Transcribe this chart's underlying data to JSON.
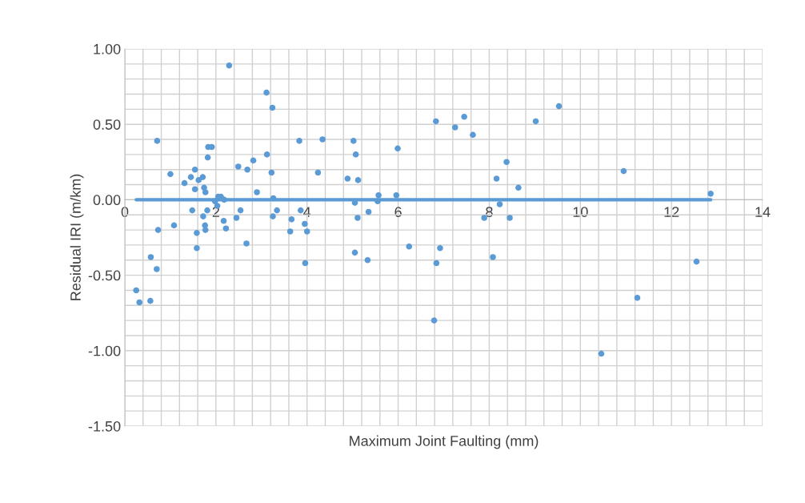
{
  "chart_data": {
    "type": "scatter",
    "xlabel": "Maximum Joint Faulting (mm)",
    "ylabel": "Residual IRI (m/km)",
    "xlim": [
      0,
      14
    ],
    "ylim": [
      -1.5,
      1.0
    ],
    "xticks": [
      0,
      2,
      4,
      6,
      8,
      10,
      12,
      14
    ],
    "yticks": [
      {
        "value": -1.5,
        "label": "-1.50"
      },
      {
        "value": -1.0,
        "label": "-1.00"
      },
      {
        "value": -0.5,
        "label": "-0.50"
      },
      {
        "value": 0,
        "label": "0.00"
      },
      {
        "value": 0.5,
        "label": "0.50"
      },
      {
        "value": 1.0,
        "label": "1.00"
      }
    ],
    "grid": true,
    "legend": false,
    "marker": "circle",
    "series": [
      {
        "color": "#5b9bd5",
        "x": [
          2.29,
          3.11,
          3.24,
          0.71,
          3.83,
          4.34,
          1.83,
          1.91,
          1.82,
          3.12,
          2.82,
          2.49,
          2.69,
          1.0,
          1.54,
          1.45,
          1.71,
          1.62,
          3.22,
          4.24,
          1.31,
          1.54,
          1.74,
          1.77,
          2.9,
          3.26,
          2.05,
          2.11,
          2.18,
          1.98,
          2.03,
          1.48,
          1.81,
          2.54,
          3.34,
          3.86,
          1.72,
          2.45,
          3.25,
          3.66,
          2.17,
          1.76,
          3.95,
          0.73,
          1.08,
          1.77,
          2.22,
          3.63,
          4.0,
          1.58,
          1.58,
          2.67,
          3.96,
          0.57,
          0.7,
          0.25,
          0.32,
          0.56,
          9.53,
          6.83,
          9.02,
          7.45,
          7.25,
          7.64,
          5.02,
          5.07,
          5.99,
          8.38,
          4.89,
          5.12,
          8.16,
          8.64,
          5.57,
          5.96,
          5.55,
          5.05,
          8.23,
          5.35,
          5.11,
          7.89,
          8.45,
          6.24,
          6.92,
          5.05,
          5.33,
          8.08,
          6.84,
          6.79,
          10.95,
          12.86,
          12.55,
          11.25,
          10.46
        ],
        "values": [
          0.89,
          0.71,
          0.61,
          0.39,
          0.39,
          0.4,
          0.35,
          0.35,
          0.28,
          0.3,
          0.26,
          0.22,
          0.2,
          0.17,
          0.2,
          0.15,
          0.15,
          0.13,
          0.18,
          0.18,
          0.11,
          0.07,
          0.08,
          0.05,
          0.05,
          0.01,
          0.02,
          0.02,
          0.0,
          -0.01,
          -0.04,
          -0.07,
          -0.07,
          -0.07,
          -0.07,
          -0.07,
          -0.11,
          -0.12,
          -0.11,
          -0.13,
          -0.14,
          -0.17,
          -0.16,
          -0.2,
          -0.17,
          -0.2,
          -0.19,
          -0.21,
          -0.21,
          -0.22,
          -0.32,
          -0.29,
          -0.42,
          -0.38,
          -0.46,
          -0.6,
          -0.68,
          -0.67,
          0.62,
          0.52,
          0.52,
          0.55,
          0.48,
          0.43,
          0.39,
          0.3,
          0.34,
          0.25,
          0.14,
          0.13,
          0.14,
          0.08,
          0.03,
          0.03,
          -0.01,
          -0.02,
          -0.03,
          -0.08,
          -0.12,
          -0.12,
          -0.12,
          -0.31,
          -0.32,
          -0.35,
          -0.4,
          -0.38,
          -0.42,
          -0.8,
          0.19,
          0.04,
          -0.41,
          -0.65,
          -1.02
        ]
      },
      {
        "type": "line",
        "color": "#5b9bd5",
        "marker": "none",
        "x": [
          0.25,
          12.86
        ],
        "values": [
          0,
          0
        ]
      }
    ]
  }
}
